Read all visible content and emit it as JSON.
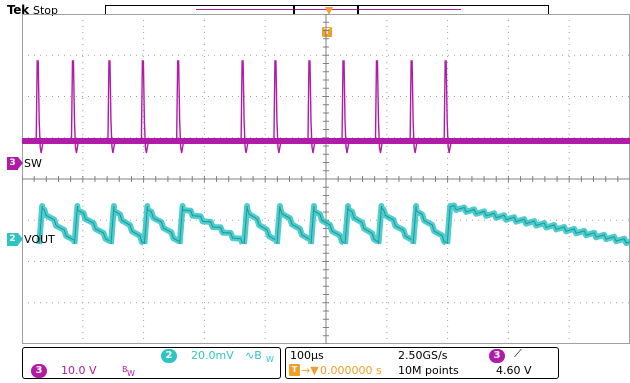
{
  "header": {
    "brand": "Tek",
    "acq_state": "Stop"
  },
  "trigger_marker": {
    "label": "T"
  },
  "channels": [
    {
      "id": "3",
      "label": "SW",
      "color": "#b01ca8"
    },
    {
      "id": "2",
      "label": "VOUT",
      "color": "#2fc4c4"
    }
  ],
  "readouts": {
    "ch2": {
      "id": "2",
      "scale": "20.0mV",
      "coupling_symbol": "∿B",
      "coupling_sub": "W",
      "color": "#2fc4c4"
    },
    "ch3": {
      "id": "3",
      "scale": "10.0 V",
      "bw_symbol": "B",
      "bw_sub": "W",
      "color": "#b01ca8"
    },
    "horizontal": {
      "time_per_div": "100µs",
      "sample_rate": "2.50GS/s",
      "trigger_delay_label": "T",
      "trigger_delay": "0.000000 s",
      "record_length": "10M points"
    },
    "trigger": {
      "source": "3",
      "slope_symbol": "⟋",
      "level": "4.60 V"
    }
  },
  "colors": {
    "grid": "#a0a0a0",
    "sw": "#b01ca8",
    "vout": "#2fc4c4",
    "trigger": "#f0a02a"
  },
  "waveform_data": {
    "sw_spike_times_div": [
      0.25,
      0.83,
      1.43,
      1.98,
      2.56,
      3.62,
      4.16,
      4.72,
      5.28,
      5.83,
      6.4,
      6.96
    ]
  }
}
